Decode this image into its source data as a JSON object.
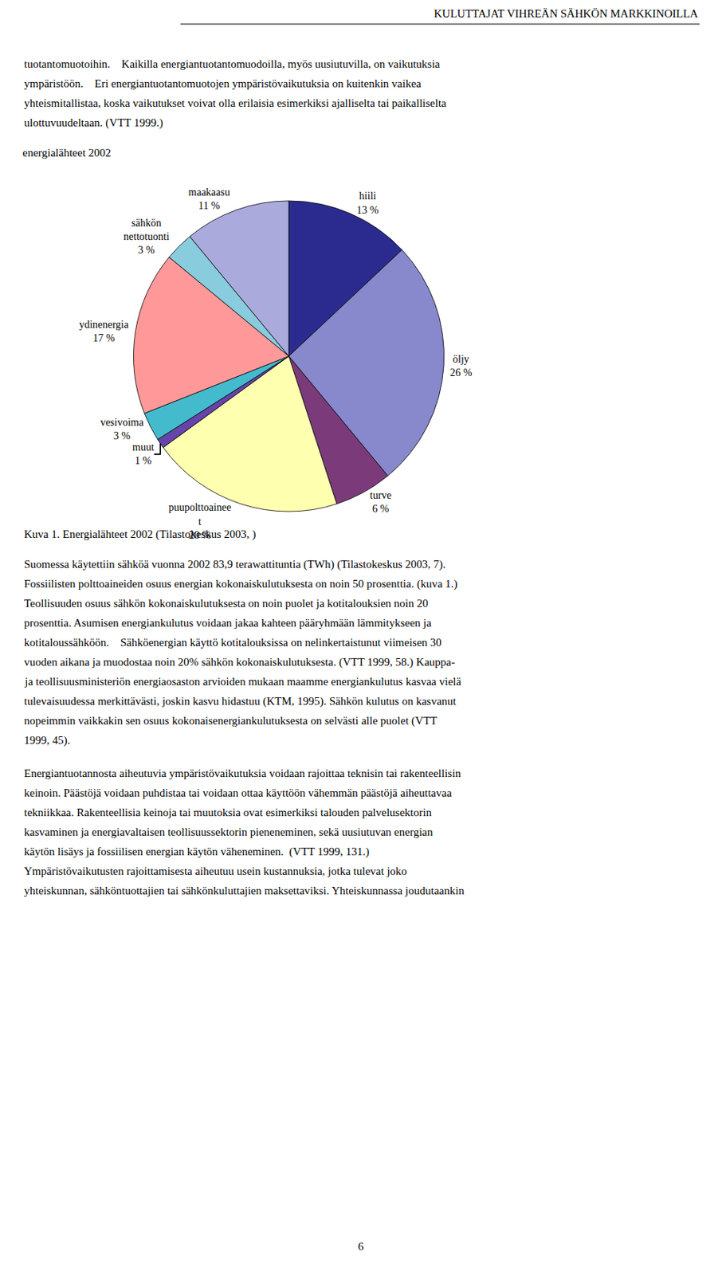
{
  "chart_data": {
    "type": "pie",
    "title": "energialähteet 2002",
    "categories": [
      "hiili",
      "öljy",
      "turve",
      "puupolttoainee\nt",
      "muut",
      "vesivoima",
      "ydinenergia",
      "sähkön\nnettotuonti",
      "maakaasu"
    ],
    "values": [
      13,
      26,
      6,
      20,
      1,
      3,
      17,
      3,
      11
    ],
    "value_labels": [
      "13 %",
      "26 %",
      "6 %",
      "20 %",
      "1 %",
      "3 %",
      "17 %",
      "3 %",
      "11 %"
    ],
    "colors": [
      "#2b2b8f",
      "#8888cc",
      "#7b3b7b",
      "#ffffb0",
      "#6644aa",
      "#44bbcc",
      "#ff9999",
      "#88ccdd",
      "#aaaadd"
    ],
    "data_labels": true,
    "annotations": [
      [
        "KULUTTAJAT VIHREÄN SÄHKÖN MARKKINOILLA"
      ],
      [
        "tuotantomuotoihin.    Kaikilla energiantuotantomuodoilla, myös uusiutuvilla, on vaikutuksia",
        "ympäristöön.    Eri energiantuotantomuotojen ympäristövaikutuksia on kuitenkin vaikea",
        "yhteismitallistaa, koska vaikutukset voivat olla erilaisia esimerkiksi ajalliselta tai paikalliselta",
        "ulottuvuudeltaan. (VTT 1999.)"
      ],
      [
        "Kuva 1. Energialähteet 2002 (Tilastokeskus 2003, )"
      ],
      [
        "Suomessa käytettiin sähköä vuonna 2002 83,9 terawattituntia (TWh) (Tilastokeskus 2003, 7).",
        "Fossiilisten polttoaineiden osuus energian kokonaiskulutuksesta on noin 50 prosenttia. (kuva 1.)",
        "Teollisuuden osuus sähkön kokonaiskulutuksesta on noin puolet ja kotitalouksien noin 20",
        "prosenttia. Asumisen energiankulutus voidaan jakaa kahteen pääryhmään lämmitykseen ja",
        "kotitaloussähköön.    Sähköenergian käyttö kotitalouksissa on nelinkertaistunut viimeisen 30",
        "vuoden aikana ja muodostaa noin 20% sähkön kokonaiskulutuksesta. (VTT 1999, 58.) Kauppa-",
        "ja teollisuusministeriön energiaosaston arvioiden mukaan maamme energiankulutus kasvaa vielä",
        "tulevaisuudessa merkittävästi, joskin kasvu hidastuu (KTM, 1995). Sähkön kulutus on kasvanut",
        "nopeimmin vaikkakin sen osuus kokonaisenergiankulutuksesta on selvästi alle puolet (VTT",
        "1999, 45)."
      ],
      [
        "Energiantuotannosta aiheutuvia ympäristövaikutuksia voidaan rajoittaa teknisin tai rakenteellisin",
        "keinoin. Päästöjä voidaan puhdistaa tai voidaan ottaa käyttöön vähemmän päästöjä aiheuttavaa",
        "tekniikkaa. Rakenteellisia keinoja tai muutoksia ovat esimerkiksi talouden palvelusektorin",
        "kasvaminen ja energiavaltaisen teollisuussektorin pieneneminen, sekä uusiutuvan energian",
        "käytön lisäys ja fossiilisen energian käytön väheneminen.  (VTT 1999, 131.)",
        "Ympäristövaikutusten rajoittamisesta aiheutuu usein kustannuksia, jotka tulevat joko",
        "yhteiskunnan, sähköntuottajien tai sähkönkuluttajien maksettaviksi. Yhteiskunnassa joudutaankin"
      ],
      [
        "6"
      ]
    ]
  }
}
